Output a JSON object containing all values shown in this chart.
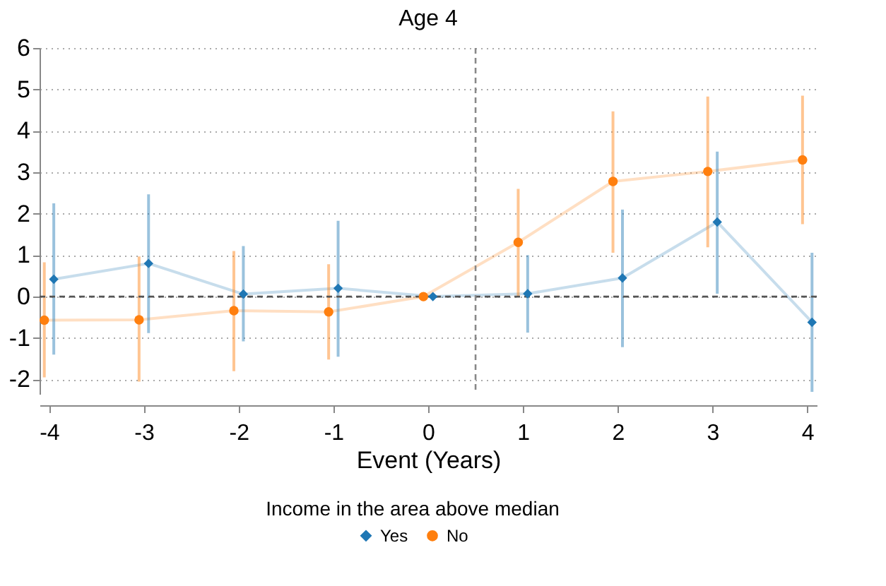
{
  "chart_data": {
    "type": "line",
    "title": "Age 4",
    "xlabel": "Event (Years)",
    "legend_title": "Income in the area above median",
    "xlim": [
      -4.1,
      4.1
    ],
    "xticks": [
      -4,
      -3,
      -2,
      -1,
      0,
      1,
      2,
      3,
      4
    ],
    "ylim": [
      -2.35,
      6
    ],
    "yticks": [
      -2,
      -1,
      0,
      1,
      2,
      3,
      4,
      5,
      6
    ],
    "grid": "y",
    "legend": "bottom",
    "line_style": "solid",
    "ref_lines": [
      {
        "axis": "y",
        "value": 0,
        "line_style": "dashed",
        "color": "#555555"
      },
      {
        "axis": "x",
        "value": 0.5,
        "line_style": "dashed",
        "color": "#888888"
      }
    ],
    "series": [
      {
        "name": "Yes",
        "color": "#1f77b4",
        "marker": "diamond",
        "x": [
          -3.95,
          -2.95,
          -1.95,
          -0.95,
          0.05,
          1.05,
          2.05,
          3.05,
          4.05
        ],
        "values": [
          0.42,
          0.8,
          0.06,
          0.2,
          0,
          0.07,
          0.45,
          1.8,
          -0.62
        ],
        "errors": [
          [
            -1.4,
            2.25
          ],
          [
            -0.88,
            2.47
          ],
          [
            -1.08,
            1.22
          ],
          [
            -1.45,
            1.83
          ],
          null,
          [
            -0.87,
            1.0
          ],
          [
            -1.22,
            2.1
          ],
          [
            0.07,
            3.5
          ],
          [
            -2.3,
            1.06
          ]
        ]
      },
      {
        "name": "No",
        "color": "#ff7f0e",
        "marker": "circle",
        "x": [
          -4.05,
          -3.05,
          -2.05,
          -1.05,
          -0.05,
          0.95,
          1.95,
          2.95,
          3.95
        ],
        "values": [
          -0.57,
          -0.56,
          -0.34,
          -0.37,
          0,
          1.31,
          2.78,
          3.02,
          3.3
        ],
        "errors": [
          [
            -1.95,
            0.83
          ],
          [
            -2.05,
            0.97
          ],
          [
            -1.8,
            1.1
          ],
          [
            -1.52,
            0.78
          ],
          null,
          [
            0.0,
            2.6
          ],
          [
            1.06,
            4.47
          ],
          [
            1.19,
            4.83
          ],
          [
            1.75,
            4.85
          ]
        ]
      }
    ]
  }
}
